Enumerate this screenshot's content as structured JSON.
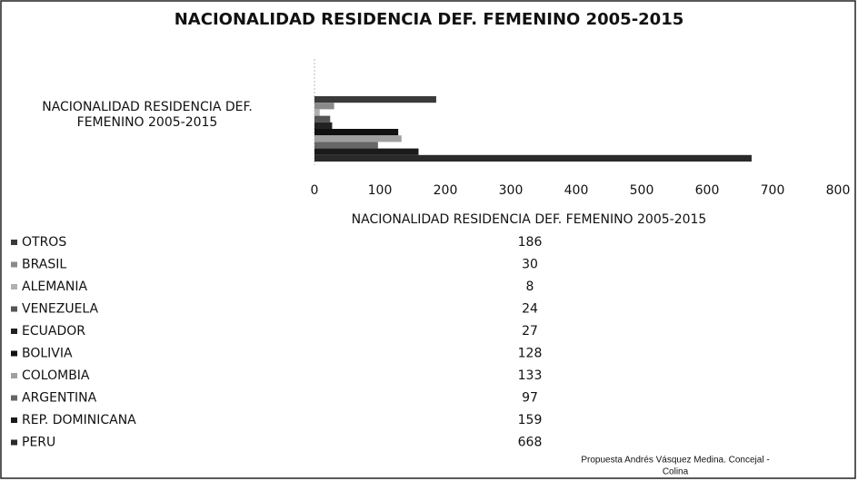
{
  "chart_data": {
    "type": "bar",
    "orientation": "horizontal",
    "title": "NACIONALIDAD RESIDENCIA DEF. FEMENINO 2005-2015",
    "categories": [
      "NACIONALIDAD RESIDENCIA DEF. FEMENINO 2005-2015"
    ],
    "series": [
      {
        "name": "OTROS",
        "color": "#3a3a3a",
        "values": [
          186
        ]
      },
      {
        "name": "BRASIL",
        "color": "#8a8a8a",
        "values": [
          30
        ]
      },
      {
        "name": "ALEMANIA",
        "color": "#b0b0b0",
        "values": [
          8
        ]
      },
      {
        "name": "VENEZUELA",
        "color": "#555555",
        "values": [
          24
        ]
      },
      {
        "name": "ECUADOR",
        "color": "#222222",
        "values": [
          27
        ]
      },
      {
        "name": "BOLIVIA",
        "color": "#111111",
        "values": [
          128
        ]
      },
      {
        "name": "COLOMBIA",
        "color": "#a0a0a0",
        "values": [
          133
        ]
      },
      {
        "name": "ARGENTINA",
        "color": "#666666",
        "values": [
          97
        ]
      },
      {
        "name": "REP. DOMINICANA",
        "color": "#1a1a1a",
        "values": [
          159
        ]
      },
      {
        "name": "PERU",
        "color": "#2a2a2a",
        "values": [
          668
        ]
      }
    ],
    "xlim": [
      0,
      800
    ],
    "xticks": [
      0,
      100,
      200,
      300,
      400,
      500,
      600,
      700,
      800
    ],
    "data_table": true,
    "note": [
      "Propuesta Andrés Vásquez Medina. Concejal -",
      "Colina"
    ]
  }
}
